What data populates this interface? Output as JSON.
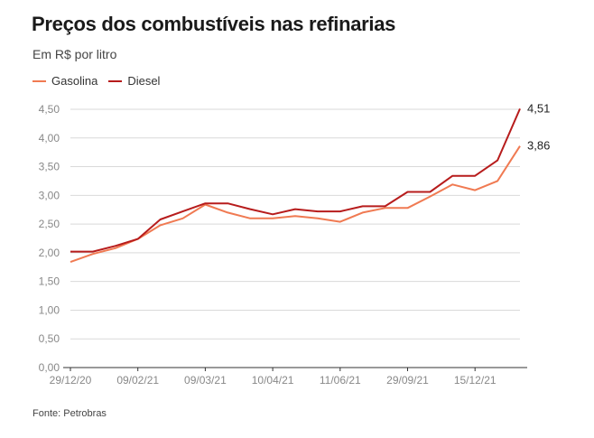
{
  "header": {
    "title": "Preços dos combustíveis nas refinarias",
    "subtitle": "Em R$ por litro"
  },
  "footer": {
    "source": "Fonte: Petrobras"
  },
  "colors": {
    "gasolina": "#f07a52",
    "diesel": "#b71c1c",
    "grid": "#d9d9d9",
    "axis": "#333333",
    "tick_text": "#888888"
  },
  "chart_data": {
    "type": "line",
    "ylim": [
      0,
      4.5
    ],
    "y_ticks": [
      0,
      0.5,
      1.0,
      1.5,
      2.0,
      2.5,
      3.0,
      3.5,
      4.0,
      4.5
    ],
    "y_tick_labels": [
      "0,00",
      "0,50",
      "1,00",
      "1,50",
      "2,00",
      "2,50",
      "3,00",
      "3,50",
      "4,00",
      "4,50"
    ],
    "x_tick_labels": [
      "29/12/20",
      "09/02/21",
      "09/03/21",
      "10/04/21",
      "11/06/21",
      "29/09/21",
      "15/12/21"
    ],
    "x_tick_index": [
      0,
      3,
      6,
      9,
      12,
      15,
      18
    ],
    "point_count": 21,
    "grid": true,
    "legend": "top-left",
    "series": [
      {
        "name": "Gasolina",
        "color_key": "gasolina",
        "values": [
          1.84,
          1.98,
          2.08,
          2.24,
          2.48,
          2.6,
          2.84,
          2.7,
          2.6,
          2.6,
          2.64,
          2.6,
          2.54,
          2.7,
          2.78,
          2.78,
          2.98,
          3.19,
          3.09,
          3.25,
          3.86
        ],
        "end_label": "3,86"
      },
      {
        "name": "Diesel",
        "color_key": "diesel",
        "values": [
          2.02,
          2.02,
          2.12,
          2.24,
          2.58,
          2.72,
          2.86,
          2.86,
          2.76,
          2.67,
          2.76,
          2.72,
          2.72,
          2.81,
          2.81,
          3.06,
          3.06,
          3.34,
          3.34,
          3.61,
          4.51
        ],
        "end_label": "4,51"
      }
    ]
  }
}
